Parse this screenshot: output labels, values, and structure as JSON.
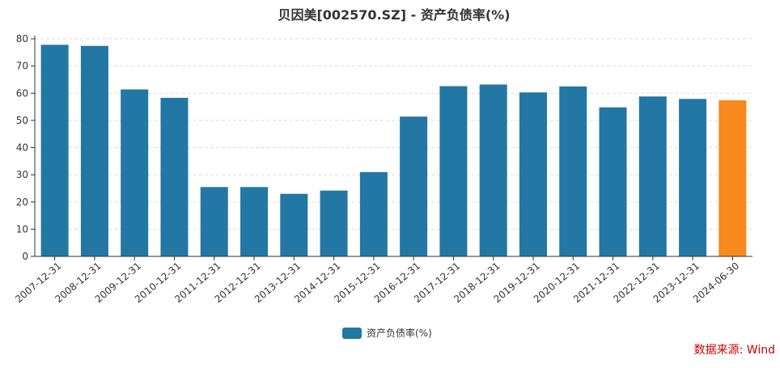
{
  "chart_data": {
    "type": "bar",
    "title": "贝因美[002570.SZ] - 资产负债率(%)",
    "categories": [
      "2007-12-31",
      "2008-12-31",
      "2009-12-31",
      "2010-12-31",
      "2011-12-31",
      "2012-12-31",
      "2013-12-31",
      "2014-12-31",
      "2015-12-31",
      "2016-12-31",
      "2017-12-31",
      "2018-12-31",
      "2019-12-31",
      "2020-12-31",
      "2021-12-31",
      "2022-12-31",
      "2023-12-31",
      "2024-06-30"
    ],
    "series": [
      {
        "name": "资产负债率(%)",
        "values": [
          77.8,
          77.4,
          61.4,
          58.3,
          25.5,
          25.5,
          23.0,
          24.2,
          31.0,
          51.4,
          62.6,
          63.2,
          60.3,
          62.5,
          54.8,
          58.8,
          57.9,
          57.4
        ]
      }
    ],
    "ylim": [
      0,
      80
    ],
    "yticks": [
      0,
      10,
      20,
      30,
      40,
      50,
      60,
      70,
      80
    ],
    "grid": true,
    "legend_position": "bottom",
    "colors": {
      "bar": "#2277a4",
      "highlight": "#f7891d",
      "grid": "#dddddd",
      "axis": "#333333",
      "source": "#cc0000"
    },
    "highlight_index": 17,
    "source": "数据来源: Wind"
  }
}
